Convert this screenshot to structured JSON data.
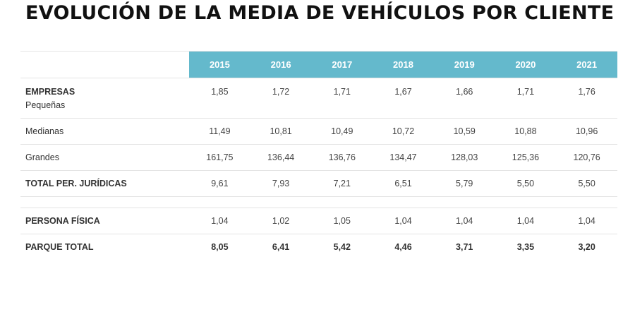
{
  "title": "EVOLUCIÓN DE LA MEDIA DE VEHÍCULOS POR CLIENTE",
  "table": {
    "years": [
      "2015",
      "2016",
      "2017",
      "2018",
      "2019",
      "2020",
      "2021"
    ],
    "rows": {
      "empresas": {
        "group_label": "EMPRESAS",
        "label": "Pequeñas",
        "values": [
          "1,85",
          "1,72",
          "1,71",
          "1,67",
          "1,66",
          "1,71",
          "1,76"
        ]
      },
      "medianas": {
        "label": "Medianas",
        "values": [
          "11,49",
          "10,81",
          "10,49",
          "10,72",
          "10,59",
          "10,88",
          "10,96"
        ]
      },
      "grandes": {
        "label": "Grandes",
        "values": [
          "161,75",
          "136,44",
          "136,76",
          "134,47",
          "128,03",
          "125,36",
          "120,76"
        ]
      },
      "total_juridicas": {
        "label": "TOTAL PER. JURÍDICAS",
        "values": [
          "9,61",
          "7,93",
          "7,21",
          "6,51",
          "5,79",
          "5,50",
          "5,50"
        ]
      },
      "persona_fisica": {
        "label": "PERSONA FÍSICA",
        "values": [
          "1,04",
          "1,02",
          "1,05",
          "1,04",
          "1,04",
          "1,04",
          "1,04"
        ]
      },
      "parque_total": {
        "label": "PARQUE TOTAL",
        "values": [
          "8,05",
          "6,41",
          "5,42",
          "4,46",
          "3,71",
          "3,35",
          "3,20"
        ]
      }
    }
  },
  "colors": {
    "header_bg": "#64b9cc",
    "header_text": "#ffffff",
    "title_text": "#111111",
    "row_border": "#e3e3e3"
  }
}
